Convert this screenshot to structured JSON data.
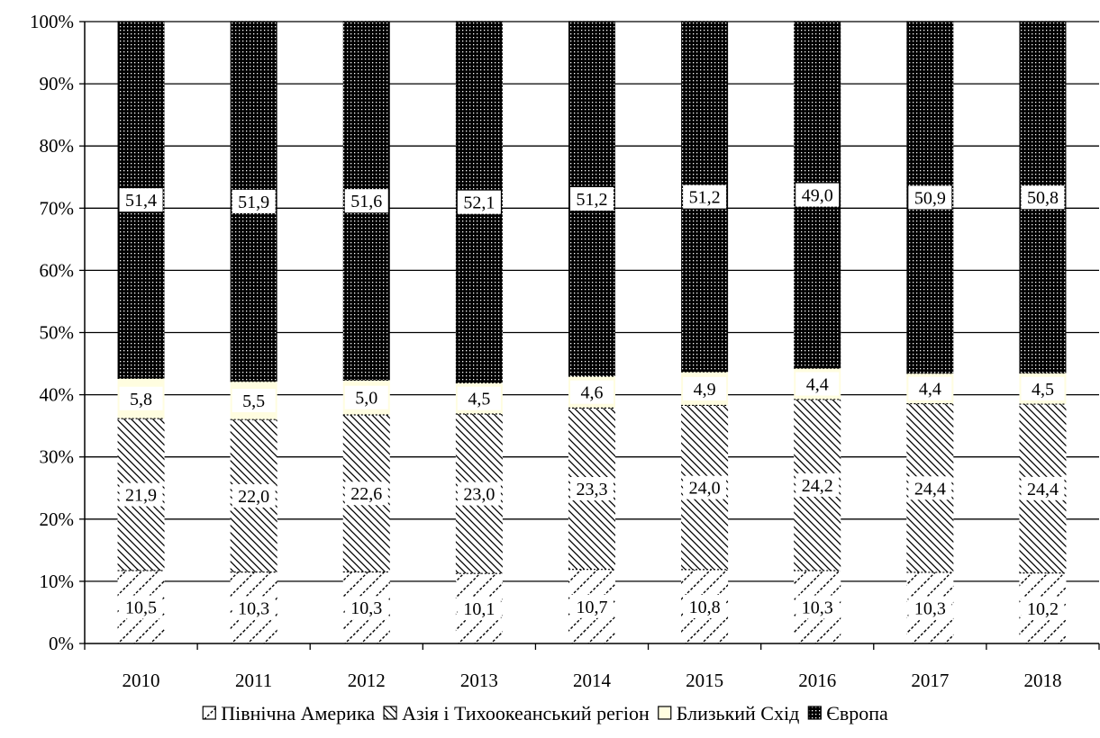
{
  "chart_data": {
    "type": "bar",
    "stacked": true,
    "percent_stacked": true,
    "categories": [
      "2010",
      "2011",
      "2012",
      "2013",
      "2014",
      "2015",
      "2016",
      "2017",
      "2018"
    ],
    "series": [
      {
        "name": "Північна Америка",
        "values": [
          10.5,
          10.3,
          10.3,
          10.1,
          10.7,
          10.8,
          10.3,
          10.3,
          10.2
        ],
        "labels": [
          "10,5",
          "10,3",
          "10,3",
          "10,1",
          "10,7",
          "10,8",
          "10,3",
          "10,3",
          "10,2"
        ],
        "pattern": "diag-cross"
      },
      {
        "name": "Азія і Тихоокеанський регіон",
        "values": [
          21.9,
          22.0,
          22.6,
          23.0,
          23.3,
          24.0,
          24.2,
          24.4,
          24.4
        ],
        "labels": [
          "21,9",
          "22,0",
          "22,6",
          "23,0",
          "23,3",
          "24,0",
          "24,2",
          "24,4",
          "24,4"
        ],
        "pattern": "diag-back"
      },
      {
        "name": "Близький Схід",
        "values": [
          5.8,
          5.5,
          5.0,
          4.5,
          4.6,
          4.9,
          4.4,
          4.4,
          4.5
        ],
        "labels": [
          "5,8",
          "5,5",
          "5,0",
          "4,5",
          "4,6",
          "4,9",
          "4,4",
          "4,4",
          "4,5"
        ],
        "pattern": "cream"
      },
      {
        "name": "Європа",
        "values": [
          51.4,
          51.9,
          51.6,
          52.1,
          51.2,
          51.2,
          49.0,
          50.9,
          50.8
        ],
        "labels": [
          "51,4",
          "51,9",
          "51,6",
          "52,1",
          "51,2",
          "51,2",
          "49,0",
          "50,9",
          "50,8"
        ],
        "pattern": "dense-dots"
      }
    ],
    "y_ticks": [
      "0%",
      "10%",
      "20%",
      "30%",
      "40%",
      "50%",
      "60%",
      "70%",
      "80%",
      "90%",
      "100%"
    ],
    "ylim": [
      0,
      100
    ],
    "grid": true,
    "legend_position": "bottom",
    "colors": {
      "cream": "#fffde0",
      "dark": "#000000",
      "light": "#ffffff"
    }
  }
}
